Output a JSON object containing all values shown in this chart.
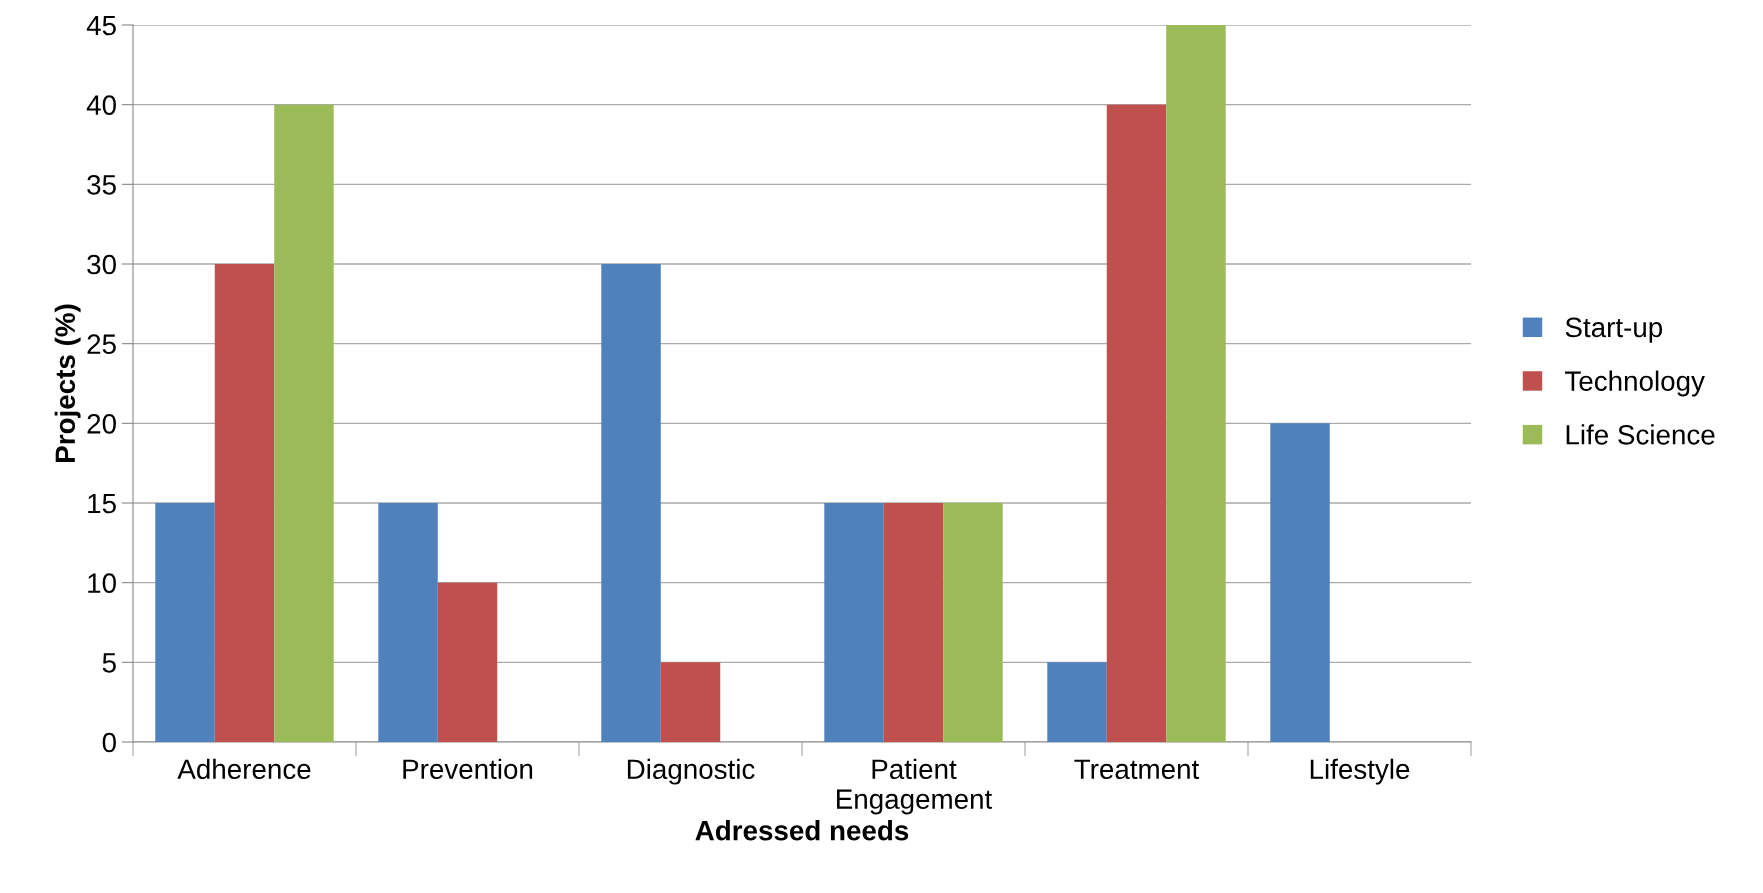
{
  "chart_data": {
    "type": "bar",
    "xlabel": "Adressed needs",
    "ylabel": "Projects (%)",
    "categories": [
      "Adherence",
      "Prevention",
      "Diagnostic",
      "Patient\nEngagement",
      "Treatment",
      "Lifestyle"
    ],
    "series": [
      {
        "name": "Start-up",
        "color": "#4f81bd",
        "values": [
          15,
          15,
          30,
          15,
          5,
          20
        ]
      },
      {
        "name": "Technology",
        "color": "#c0504d",
        "values": [
          30,
          10,
          5,
          15,
          40,
          0
        ]
      },
      {
        "name": "Life Science",
        "color": "#9bbb59",
        "values": [
          40,
          0,
          0,
          15,
          45,
          0
        ]
      }
    ],
    "ylim": [
      0,
      45
    ],
    "yticks": [
      0,
      5,
      10,
      15,
      20,
      25,
      30,
      35,
      40,
      45
    ],
    "grid": "y",
    "legend": "right"
  }
}
